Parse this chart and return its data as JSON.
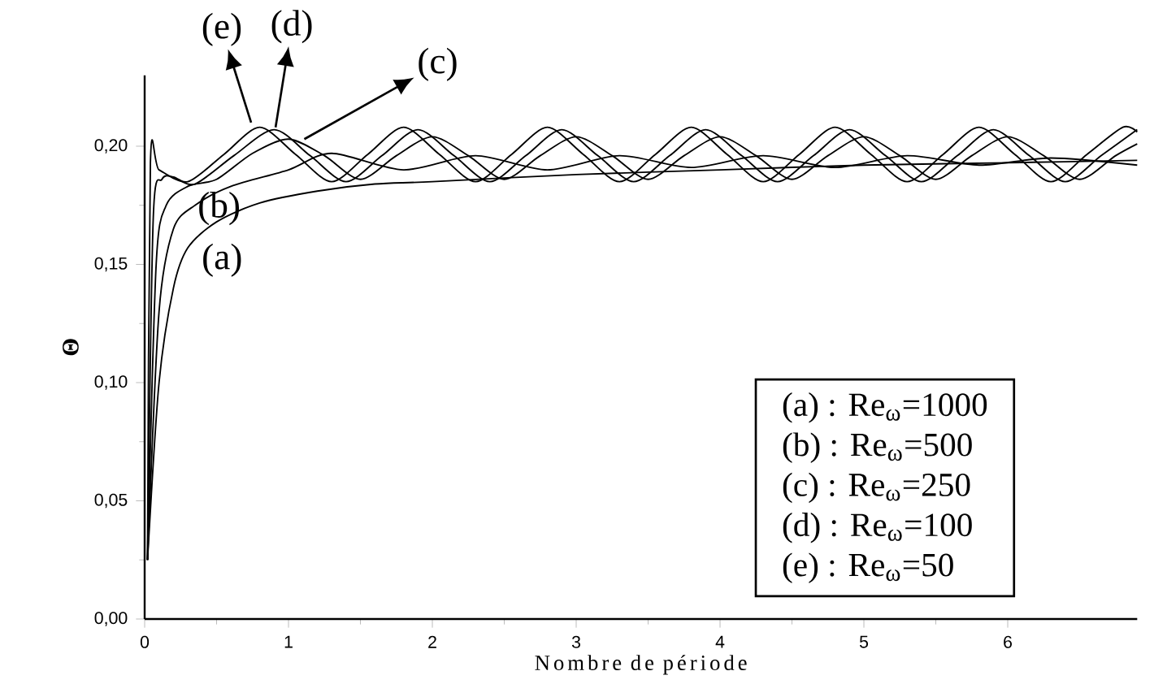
{
  "chart_data": {
    "type": "line",
    "xlabel": "Nombre de période",
    "ylabel": "Θ",
    "xlim": [
      0,
      6.9
    ],
    "ylim": [
      0,
      0.23
    ],
    "xticks": [
      0,
      1,
      2,
      3,
      4,
      5,
      6
    ],
    "yticks": [
      {
        "value": 0,
        "label": "0,00"
      },
      {
        "value": 0.05,
        "label": "0,05"
      },
      {
        "value": 0.1,
        "label": "0,10"
      },
      {
        "value": 0.15,
        "label": "0,15"
      },
      {
        "value": 0.2,
        "label": "0,20"
      }
    ],
    "grid": false,
    "marker": "none",
    "line_style": "solid",
    "series": [
      {
        "color": "#000000",
        "x": [
          0.02,
          0.1,
          0.2,
          0.3,
          0.5,
          0.8,
          1.2,
          1.6,
          2,
          3,
          4,
          5,
          6,
          6.9
        ],
        "values": [
          0.025,
          0.1,
          0.14,
          0.157,
          0.168,
          0.176,
          0.181,
          0.184,
          0.185,
          0.188,
          0.19,
          0.192,
          0.193,
          0.194
        ]
      },
      {
        "color": "#000000",
        "x": [
          0.02,
          0.1,
          0.2,
          0.35,
          0.6,
          1.0,
          1.3,
          1.8,
          2.3,
          2.8,
          3.3,
          3.8,
          4.3,
          4.8,
          5.3,
          5.8,
          6.3,
          6.9
        ],
        "values": [
          0.025,
          0.13,
          0.165,
          0.175,
          0.183,
          0.19,
          0.197,
          0.19,
          0.196,
          0.19,
          0.196,
          0.191,
          0.196,
          0.191,
          0.196,
          0.192,
          0.195,
          0.192
        ]
      },
      {
        "color": "#000000",
        "x": [
          0.02,
          0.08,
          0.15,
          0.3,
          0.5,
          0.75,
          1.0,
          1.25,
          1.5,
          1.75,
          2.0,
          2.25,
          2.5,
          2.75,
          3.0,
          3.25,
          3.5,
          3.75,
          4.0,
          4.25,
          4.5,
          4.75,
          5.0,
          5.25,
          5.5,
          5.75,
          6.0,
          6.25,
          6.5,
          6.75,
          6.9
        ],
        "values": [
          0.025,
          0.15,
          0.175,
          0.183,
          0.186,
          0.197,
          0.203,
          0.196,
          0.186,
          0.196,
          0.204,
          0.196,
          0.186,
          0.196,
          0.204,
          0.196,
          0.186,
          0.196,
          0.204,
          0.196,
          0.186,
          0.196,
          0.204,
          0.196,
          0.186,
          0.196,
          0.204,
          0.196,
          0.186,
          0.196,
          0.201
        ]
      },
      {
        "color": "#000000",
        "x": [
          0.02,
          0.06,
          0.12,
          0.2,
          0.35,
          0.62,
          0.9,
          1.15,
          1.4,
          1.65,
          1.9,
          2.15,
          2.4,
          2.65,
          2.9,
          3.15,
          3.4,
          3.65,
          3.9,
          4.15,
          4.4,
          4.65,
          4.9,
          5.15,
          5.4,
          5.65,
          5.9,
          6.15,
          6.4,
          6.65,
          6.9
        ],
        "values": [
          0.025,
          0.17,
          0.186,
          0.187,
          0.184,
          0.196,
          0.207,
          0.196,
          0.185,
          0.196,
          0.207,
          0.196,
          0.185,
          0.196,
          0.207,
          0.196,
          0.185,
          0.196,
          0.207,
          0.196,
          0.185,
          0.196,
          0.207,
          0.196,
          0.185,
          0.196,
          0.207,
          0.196,
          0.185,
          0.196,
          0.207
        ]
      },
      {
        "color": "#000000",
        "x": [
          0.02,
          0.04,
          0.1,
          0.3,
          0.55,
          0.8,
          1.05,
          1.3,
          1.55,
          1.8,
          2.05,
          2.3,
          2.55,
          2.8,
          3.05,
          3.3,
          3.55,
          3.8,
          4.05,
          4.3,
          4.55,
          4.8,
          5.05,
          5.3,
          5.55,
          5.8,
          6.05,
          6.3,
          6.55,
          6.8,
          6.9
        ],
        "values": [
          0.025,
          0.193,
          0.19,
          0.185,
          0.1965,
          0.208,
          0.1965,
          0.185,
          0.1965,
          0.208,
          0.1965,
          0.185,
          0.1965,
          0.208,
          0.1965,
          0.185,
          0.1965,
          0.208,
          0.1965,
          0.185,
          0.1965,
          0.208,
          0.1965,
          0.185,
          0.1965,
          0.208,
          0.1965,
          0.185,
          0.1965,
          0.208,
          0.206
        ]
      }
    ],
    "annotations": [
      {
        "text": "(e)",
        "x": 0.74,
        "y": 0.21
      },
      {
        "text": "(d)",
        "x": 0.91,
        "y": 0.208
      },
      {
        "text": "(c)",
        "x": 1.11,
        "y": 0.203
      },
      "(b)",
      "(a)",
      "(a)  : Re$_{ω}$=1000",
      "(b)   : Re$_{ω}$=500",
      "(c)   : Re$_{ω}$=250",
      "(d) : Re$_{ω}$=100",
      "(e) : Re$_{ω}$=50"
    ]
  }
}
